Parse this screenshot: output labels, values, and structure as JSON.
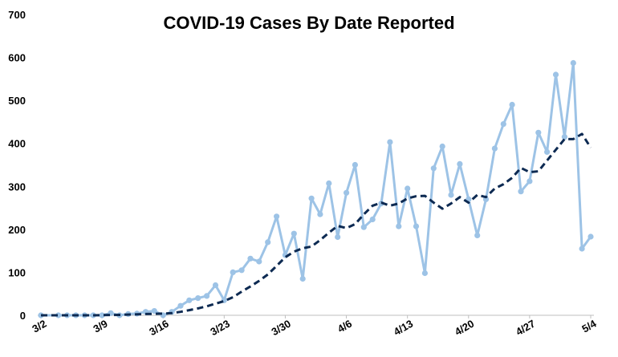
{
  "chart_data": {
    "type": "line",
    "title": "COVID-19 Cases By Date Reported",
    "xlabel": "",
    "ylabel": "",
    "ylim": [
      0,
      700
    ],
    "yticks": [
      0,
      100,
      200,
      300,
      400,
      500,
      600,
      700
    ],
    "x_tick_labels": [
      "3/2",
      "3/9",
      "3/16",
      "3/23",
      "3/30",
      "4/6",
      "4/13",
      "4/20",
      "4/27",
      "5/4"
    ],
    "x_tick_positions": [
      0,
      7,
      14,
      21,
      28,
      35,
      42,
      49,
      56,
      63
    ],
    "grid": false,
    "legend": "none",
    "colors": {
      "daily": "#9dc3e6",
      "average": "#0d2a52"
    },
    "series": [
      {
        "style": "solid-line-with-markers",
        "points": [
          [
            0,
            0
          ],
          [
            2,
            0
          ],
          [
            3,
            0
          ],
          [
            4,
            0
          ],
          [
            5,
            0
          ],
          [
            6,
            0
          ],
          [
            7,
            0
          ],
          [
            8,
            5
          ],
          [
            9,
            0
          ],
          [
            10,
            3
          ],
          [
            11,
            4
          ],
          [
            12,
            8
          ],
          [
            13,
            10
          ],
          [
            14,
            0
          ],
          [
            15,
            8
          ],
          [
            16,
            22
          ],
          [
            17,
            35
          ],
          [
            18,
            40
          ],
          [
            19,
            45
          ],
          [
            20,
            70
          ],
          [
            21,
            35
          ],
          [
            22,
            100
          ],
          [
            23,
            105
          ],
          [
            24,
            132
          ],
          [
            25,
            125
          ],
          [
            26,
            170
          ],
          [
            27,
            230
          ],
          [
            28,
            140
          ],
          [
            29,
            190
          ],
          [
            30,
            85
          ],
          [
            31,
            272
          ],
          [
            32,
            235
          ],
          [
            33,
            307
          ],
          [
            34,
            182
          ],
          [
            35,
            285
          ],
          [
            36,
            350
          ],
          [
            37,
            205
          ],
          [
            38,
            223
          ],
          [
            39,
            260
          ],
          [
            40,
            403
          ],
          [
            41,
            207
          ],
          [
            42,
            295
          ],
          [
            43,
            207
          ],
          [
            44,
            98
          ],
          [
            45,
            342
          ],
          [
            46,
            393
          ],
          [
            47,
            280
          ],
          [
            48,
            352
          ],
          [
            49,
            270
          ],
          [
            50,
            186
          ],
          [
            51,
            270
          ],
          [
            52,
            388
          ],
          [
            53,
            445
          ],
          [
            54,
            490
          ],
          [
            55,
            288
          ],
          [
            56,
            312
          ],
          [
            57,
            425
          ],
          [
            58,
            380
          ],
          [
            59,
            560
          ],
          [
            60,
            415
          ],
          [
            61,
            587
          ],
          [
            62,
            155
          ],
          [
            63,
            183
          ]
        ]
      },
      {
        "style": "dashed-line",
        "points": [
          [
            0,
            0
          ],
          [
            3,
            0
          ],
          [
            6,
            0
          ],
          [
            9,
            1
          ],
          [
            12,
            3
          ],
          [
            14,
            4
          ],
          [
            15,
            5
          ],
          [
            16,
            8
          ],
          [
            17,
            12
          ],
          [
            18,
            16
          ],
          [
            19,
            21
          ],
          [
            20,
            27
          ],
          [
            21,
            33
          ],
          [
            22,
            42
          ],
          [
            23,
            55
          ],
          [
            24,
            67
          ],
          [
            25,
            80
          ],
          [
            26,
            95
          ],
          [
            27,
            115
          ],
          [
            28,
            135
          ],
          [
            29,
            148
          ],
          [
            30,
            156
          ],
          [
            31,
            160
          ],
          [
            32,
            175
          ],
          [
            33,
            192
          ],
          [
            34,
            208
          ],
          [
            35,
            203
          ],
          [
            36,
            212
          ],
          [
            37,
            235
          ],
          [
            38,
            255
          ],
          [
            39,
            262
          ],
          [
            40,
            255
          ],
          [
            41,
            260
          ],
          [
            42,
            272
          ],
          [
            43,
            277
          ],
          [
            44,
            278
          ],
          [
            45,
            262
          ],
          [
            46,
            248
          ],
          [
            47,
            260
          ],
          [
            48,
            275
          ],
          [
            49,
            262
          ],
          [
            50,
            280
          ],
          [
            51,
            275
          ],
          [
            52,
            295
          ],
          [
            53,
            305
          ],
          [
            54,
            320
          ],
          [
            55,
            343
          ],
          [
            56,
            333
          ],
          [
            57,
            335
          ],
          [
            58,
            360
          ],
          [
            59,
            385
          ],
          [
            60,
            410
          ],
          [
            61,
            410
          ],
          [
            62,
            422
          ],
          [
            63,
            390
          ]
        ]
      }
    ]
  }
}
